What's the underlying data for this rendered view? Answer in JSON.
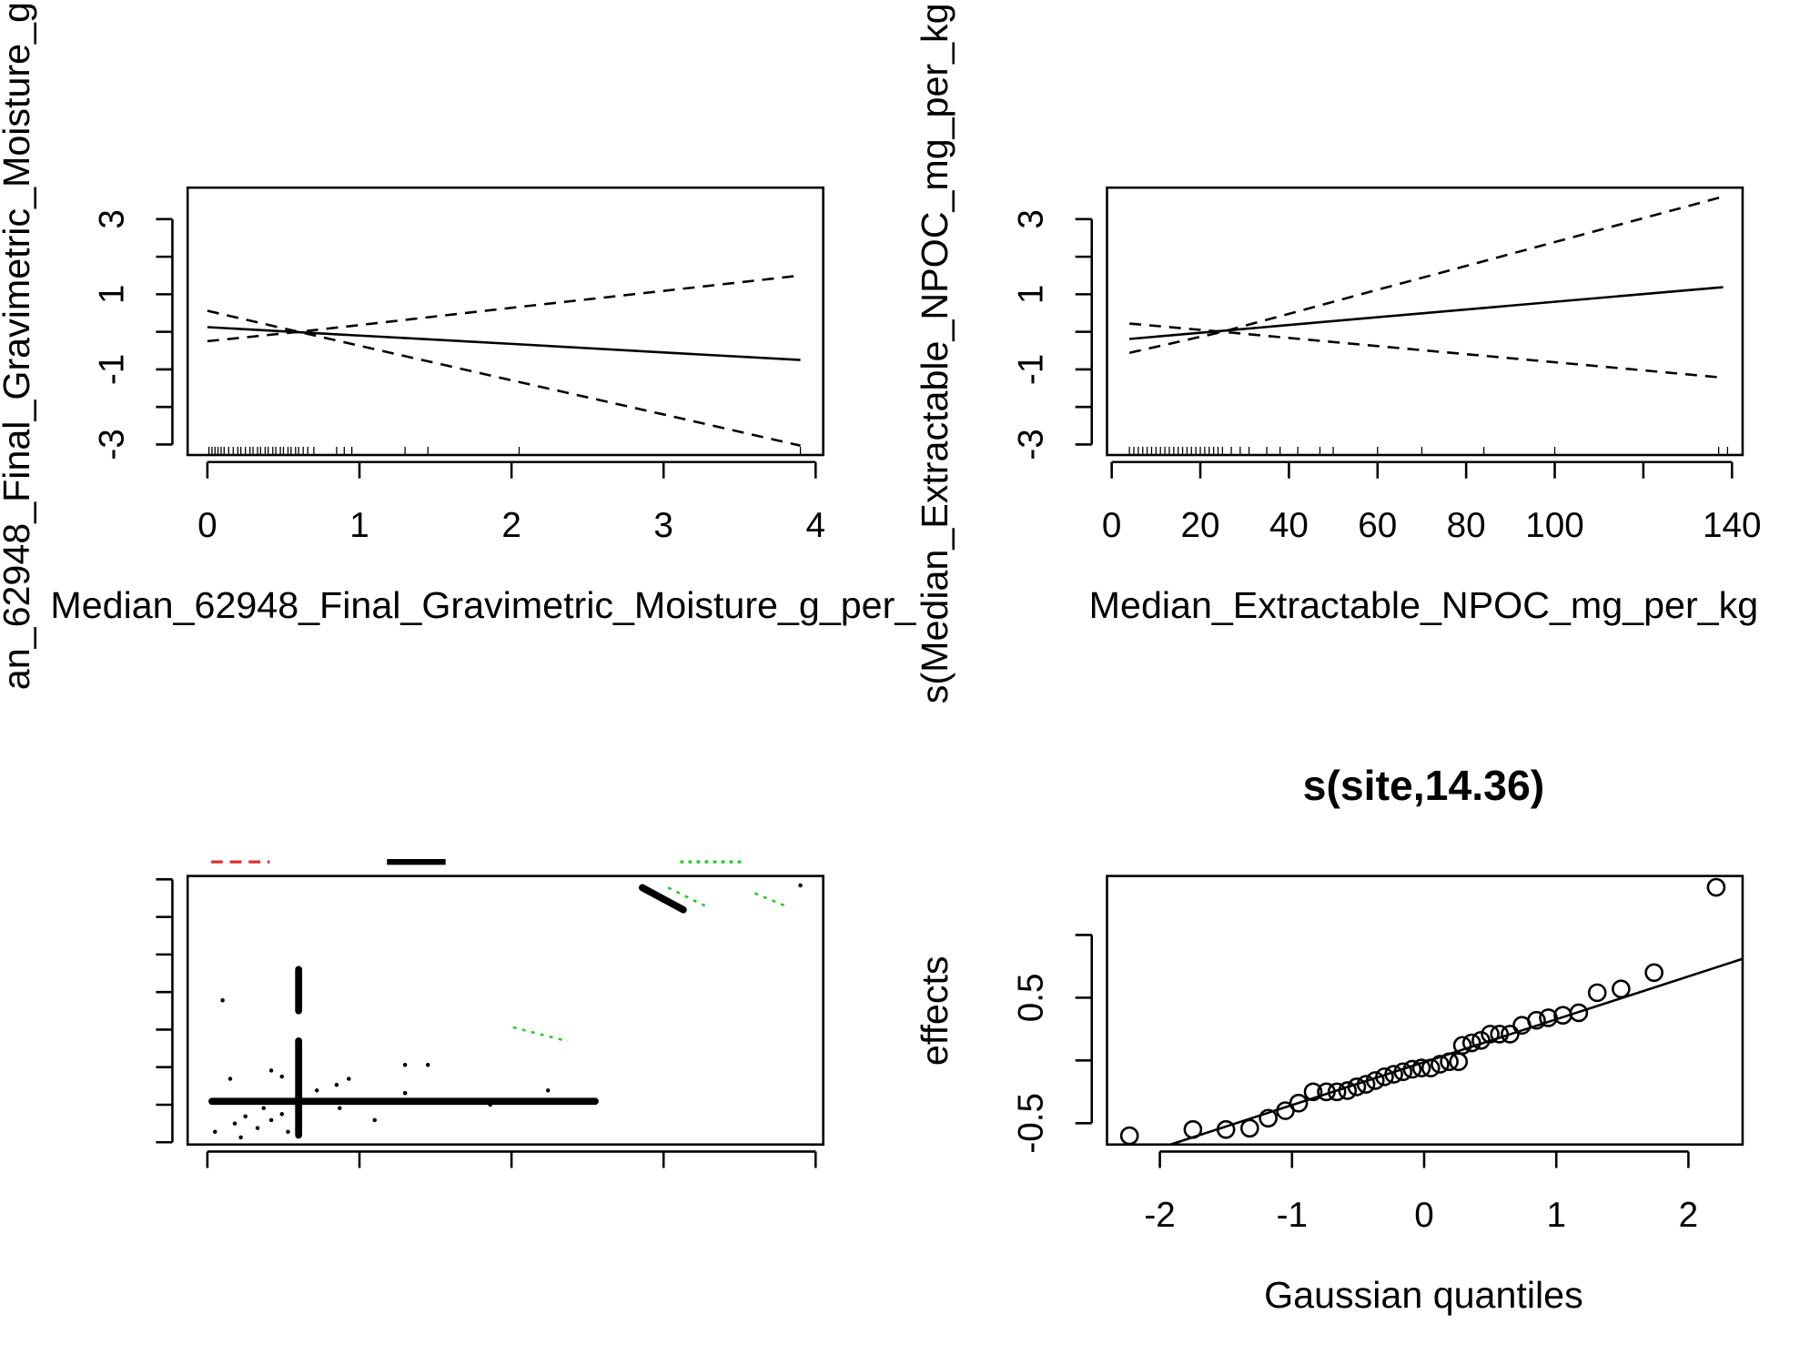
{
  "chart_data": [
    {
      "type": "line",
      "xlabel": "Median_62948_Final_Gravimetric_Moisture_g_per_",
      "ylabel": "an_62948_Final_Gravimetric_Moisture_g",
      "xlim": [
        -0.13,
        4.05
      ],
      "ylim": [
        -3.28,
        3.84
      ],
      "xticks": [
        0,
        1,
        2,
        3,
        4
      ],
      "yticks": [
        -3,
        -1,
        1,
        3
      ],
      "yticks_minor": [
        -2,
        0,
        2
      ],
      "series": [
        {
          "x": [
            0,
            0.6,
            1,
            2,
            3,
            3.9
          ],
          "values": [
            0.125,
            -0.01,
            -0.1,
            -0.32,
            -0.55,
            -0.75
          ],
          "color": "#000000",
          "style": "solid"
        },
        {
          "x": [
            0,
            0.6,
            1,
            2,
            3,
            3.9
          ],
          "values": [
            -0.25,
            0,
            0.18,
            0.64,
            1.09,
            1.5
          ],
          "color": "#000000",
          "style": "dashed"
        },
        {
          "x": [
            0,
            0.6,
            1,
            2,
            3,
            3.9
          ],
          "values": [
            0.56,
            0,
            -0.37,
            -1.29,
            -2.2,
            -3.03
          ],
          "color": "#000000",
          "style": "dashed"
        }
      ],
      "rug": [
        0.01,
        0.03,
        0.05,
        0.07,
        0.09,
        0.11,
        0.14,
        0.17,
        0.2,
        0.22,
        0.25,
        0.28,
        0.3,
        0.33,
        0.35,
        0.38,
        0.4,
        0.43,
        0.45,
        0.48,
        0.5,
        0.53,
        0.55,
        0.58,
        0.6,
        0.63,
        0.66,
        0.7,
        0.85,
        0.9,
        0.95,
        1.3,
        1.45,
        2.05,
        3.9
      ]
    },
    {
      "type": "line",
      "xlabel": "Median_Extractable_NPOC_mg_per_kg",
      "ylabel": "s(Median_Extractable_NPOC_mg_per_kg",
      "xlim": [
        -1.06,
        142.4
      ],
      "ylim": [
        -3.28,
        3.84
      ],
      "xticks": [
        0,
        20,
        40,
        60,
        80,
        100,
        140
      ],
      "xticks_minor": [
        120
      ],
      "yticks": [
        -3,
        -1,
        1,
        3
      ],
      "yticks_minor": [
        -2,
        0,
        2
      ],
      "series": [
        {
          "x": [
            4,
            25,
            60,
            100,
            138
          ],
          "values": [
            -0.19,
            0.026,
            0.39,
            0.8,
            1.19
          ],
          "color": "#000000",
          "style": "solid"
        },
        {
          "x": [
            4,
            25,
            60,
            100,
            138
          ],
          "values": [
            -0.56,
            0,
            1.12,
            2.39,
            3.6
          ],
          "color": "#000000",
          "style": "dashed"
        },
        {
          "x": [
            4,
            25,
            60,
            100,
            138
          ],
          "values": [
            0.22,
            0,
            -0.38,
            -0.81,
            -1.22
          ],
          "color": "#000000",
          "style": "dashed"
        }
      ],
      "rug": [
        4,
        5,
        6,
        7,
        8,
        9,
        10,
        11,
        12,
        13,
        14,
        15,
        16,
        17,
        18,
        19,
        20,
        21,
        22,
        23,
        24,
        25,
        27,
        29,
        31,
        35,
        38,
        42,
        47,
        50,
        60,
        70,
        84,
        100,
        137,
        139
      ]
    },
    {
      "type": "scatter",
      "tick_labels": false,
      "xlim": [
        -0.13,
        4.05
      ],
      "ylim": [
        -0.06,
        7.09
      ],
      "xticks": [
        0,
        1,
        2,
        3,
        4
      ],
      "yticks": [
        0,
        1,
        2,
        3,
        4,
        5,
        6,
        7
      ],
      "series": [
        {
          "x": [
            0.1,
            0.05,
            0.18,
            0.25,
            0.33,
            0.42,
            0.49,
            0.15,
            0.42,
            0.49,
            0.72,
            0.85,
            0.93,
            0.87,
            1.1,
            1.3,
            1.45,
            1.3,
            1.86,
            2.24,
            3.9,
            0.08,
            0.22,
            0.37,
            0.53
          ],
          "values": [
            3.78,
            0.28,
            0.5,
            0.69,
            0.38,
            0.59,
            0.75,
            1.69,
            1.91,
            1.75,
            1.38,
            1.53,
            1.69,
            0.91,
            0.59,
            2.06,
            2.06,
            1.31,
            1.0,
            1.38,
            6.84,
            1.06,
            0.13,
            0.91,
            0.28
          ],
          "color": "#000000",
          "style": "points"
        },
        {
          "x": [
            0.03,
            2.55
          ],
          "values": [
            1.09,
            1.09
          ],
          "color": "#000000",
          "style": "thick"
        },
        {
          "x": [
            0.6,
            0.6
          ],
          "values": [
            0.19,
            2.7
          ],
          "color": "#000000",
          "style": "thick"
        },
        {
          "x": [
            0.6,
            0.6
          ],
          "values": [
            3.5,
            4.6
          ],
          "color": "#000000",
          "style": "thick"
        },
        {
          "x": [
            2.86,
            3.13
          ],
          "values": [
            6.78,
            6.19
          ],
          "color": "#000000",
          "style": "thick"
        },
        {
          "x": [
            2.01,
            2.37
          ],
          "values": [
            3.06,
            2.69
          ],
          "color": "#22cc22",
          "style": "dotted"
        },
        {
          "x": [
            3.03,
            3.28
          ],
          "values": [
            6.78,
            6.28
          ],
          "color": "#22cc22",
          "style": "dotted"
        },
        {
          "x": [
            3.6,
            3.81
          ],
          "values": [
            6.63,
            6.28
          ],
          "color": "#22cc22",
          "style": "dotted"
        }
      ]
    },
    {
      "type": "scatter",
      "title": "s(site,14.36)",
      "xlabel": "Gaussian quantiles",
      "ylabel": "effects",
      "xlim": [
        -2.4,
        2.41
      ],
      "ylim": [
        -0.67,
        1.47
      ],
      "xticks": [
        -2,
        -1,
        0,
        1,
        2
      ],
      "yticks": [
        -0.5,
        0.5
      ],
      "yticks_minor": [
        0,
        1
      ],
      "series": [
        {
          "x": [
            -2.23,
            -1.75,
            -1.5,
            -1.32,
            -1.18,
            -1.05,
            -0.95,
            -0.84,
            -0.74,
            -0.66,
            -0.58,
            -0.51,
            -0.44,
            -0.37,
            -0.3,
            -0.23,
            -0.16,
            -0.09,
            -0.02,
            0.05,
            0.12,
            0.19,
            0.26,
            0.29,
            0.36,
            0.43,
            0.5,
            0.57,
            0.65,
            0.74,
            0.85,
            0.94,
            1.05,
            1.17,
            1.31,
            1.49,
            1.74,
            2.21
          ],
          "values": [
            -0.6,
            -0.55,
            -0.55,
            -0.54,
            -0.46,
            -0.4,
            -0.34,
            -0.25,
            -0.25,
            -0.25,
            -0.24,
            -0.21,
            -0.19,
            -0.16,
            -0.13,
            -0.11,
            -0.09,
            -0.07,
            -0.06,
            -0.06,
            -0.03,
            -0.01,
            -0.01,
            0.12,
            0.14,
            0.16,
            0.21,
            0.21,
            0.21,
            0.28,
            0.32,
            0.34,
            0.36,
            0.38,
            0.54,
            0.57,
            0.7,
            1.38
          ],
          "color": "#000000",
          "style": "circles"
        },
        {
          "x": [
            -1.92,
            2.41
          ],
          "values": [
            -0.67,
            0.81
          ],
          "color": "#000000",
          "style": "solid"
        }
      ]
    }
  ]
}
